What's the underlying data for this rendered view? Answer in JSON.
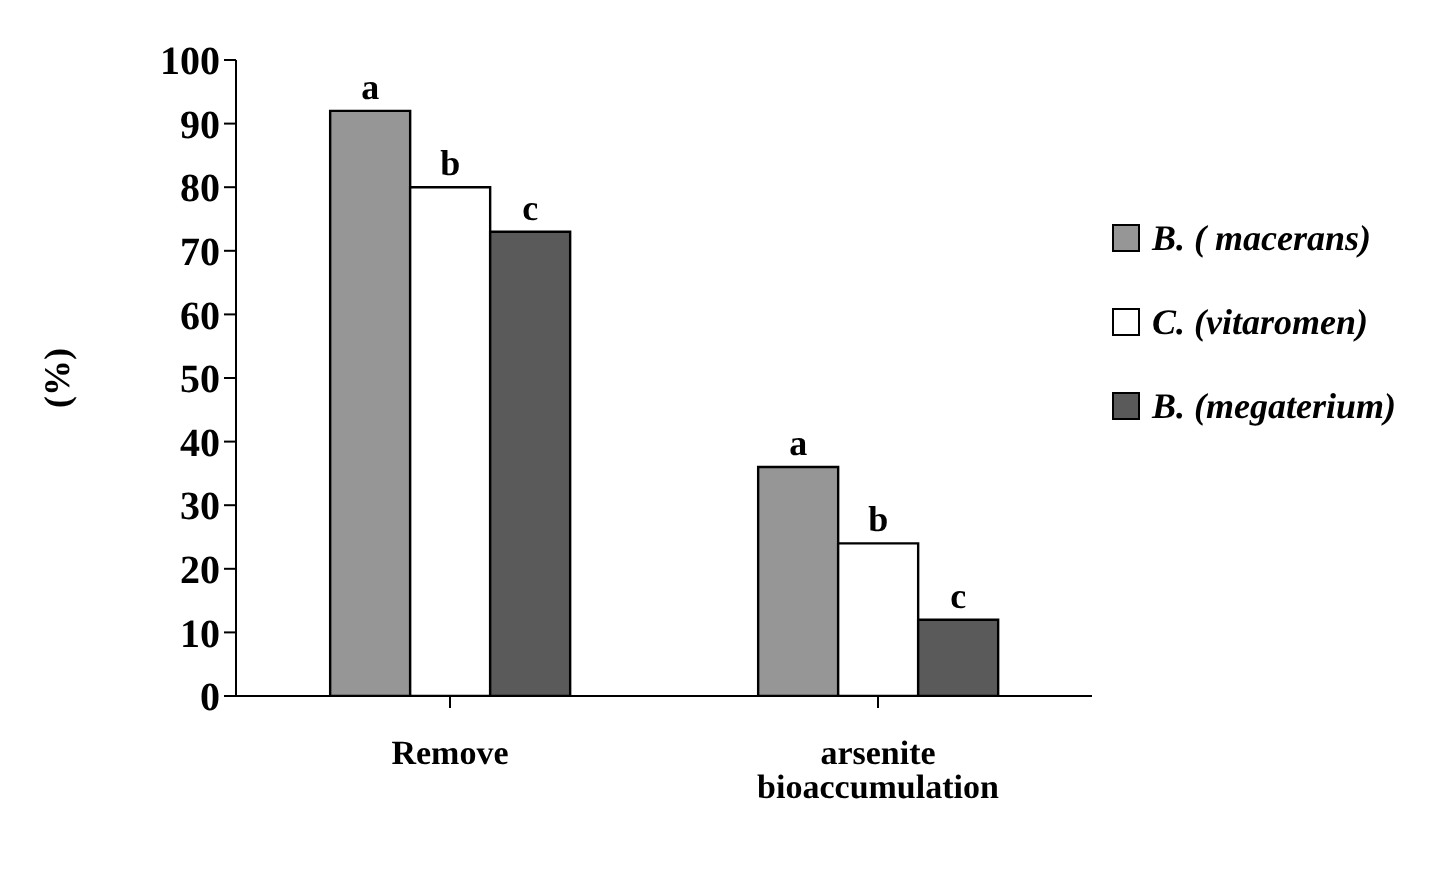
{
  "chart_data": {
    "type": "bar",
    "ylabel": "(%)",
    "categories": [
      "Remove",
      "arsenite bioaccumulation"
    ],
    "series": [
      {
        "name": "B. ( macerans)",
        "color": "#969696",
        "values": [
          92,
          36
        ],
        "value_labels": [
          "a",
          "a"
        ]
      },
      {
        "name": "C. (vitaromen)",
        "color": "#ffffff",
        "values": [
          80,
          24
        ],
        "value_labels": [
          "b",
          "b"
        ]
      },
      {
        "name": "B. (megaterium)",
        "color": "#5a5a5a",
        "values": [
          73,
          12
        ],
        "value_labels": [
          "c",
          "c"
        ]
      }
    ],
    "ylim": [
      0,
      100
    ],
    "yticks": [
      0,
      10,
      20,
      30,
      40,
      50,
      60,
      70,
      80,
      90,
      100
    ],
    "grid": false,
    "legend": "right"
  }
}
